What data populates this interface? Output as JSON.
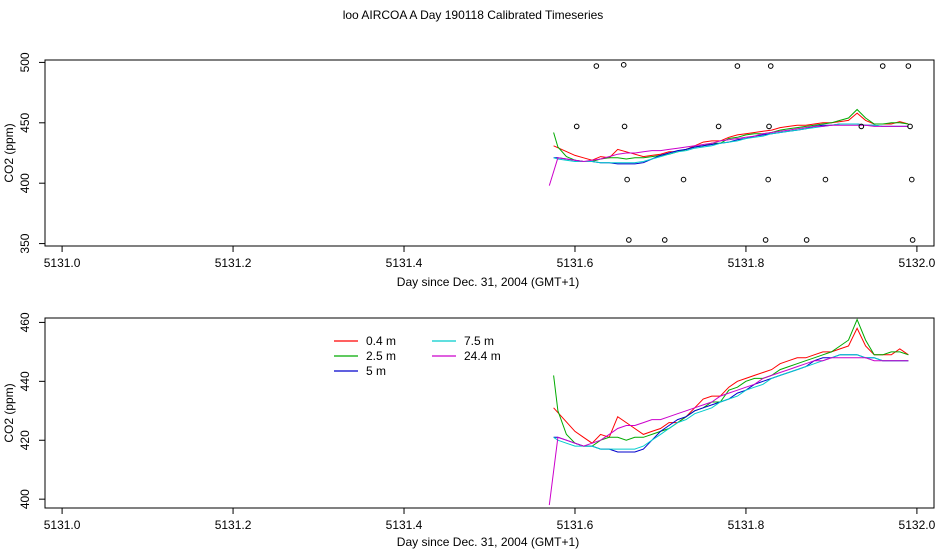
{
  "title": "loo AIRCOA A  Day 190118  Calibrated Timeseries",
  "colors": {
    "0.4 m": "#ff0000",
    "2.5 m": "#00aa00",
    "5 m": "#0000cc",
    "7.5 m": "#00cccc",
    "24.4 m": "#cc00cc"
  },
  "chart_data": [
    {
      "type": "line",
      "title": "loo AIRCOA A  Day 190118  Calibrated Timeseries",
      "xlabel": "Day since Dec. 31, 2004 (GMT+1)",
      "ylabel": "CO2 (ppm)",
      "xlim": [
        5130.98,
        5132.02
      ],
      "ylim": [
        348,
        502
      ],
      "xticks": [
        "5131.0",
        "5131.2",
        "5131.4",
        "5131.6",
        "5131.8",
        "5132.0"
      ],
      "yticks": [
        "350",
        "400",
        "450",
        "500"
      ],
      "legend": "none",
      "series": [
        {
          "name": "0.4 m",
          "color": "#ff0000",
          "x": [
            5131.575,
            5131.6,
            5131.61,
            5131.62,
            5131.63,
            5131.64,
            5131.65,
            5131.66,
            5131.67,
            5131.68,
            5131.69,
            5131.7,
            5131.71,
            5131.72,
            5131.73,
            5131.74,
            5131.75,
            5131.76,
            5131.77,
            5131.78,
            5131.79,
            5131.8,
            5131.81,
            5131.82,
            5131.83,
            5131.84,
            5131.85,
            5131.86,
            5131.87,
            5131.88,
            5131.89,
            5131.9,
            5131.91,
            5131.92,
            5131.93,
            5131.94,
            5131.95,
            5131.96,
            5131.97,
            5131.98,
            5131.99
          ],
          "y": [
            431,
            423,
            421,
            419,
            422,
            421,
            428,
            426,
            424,
            422,
            423,
            424,
            426,
            426,
            428,
            431,
            434,
            435,
            435,
            438,
            440,
            441,
            442,
            443,
            444,
            446,
            447,
            448,
            448,
            449,
            450,
            450,
            451,
            452,
            458,
            452,
            449,
            449,
            449,
            451,
            449
          ]
        },
        {
          "name": "2.5 m",
          "color": "#00aa00",
          "x": [
            5131.575,
            5131.58,
            5131.59,
            5131.6,
            5131.61,
            5131.62,
            5131.63,
            5131.64,
            5131.65,
            5131.66,
            5131.67,
            5131.68,
            5131.69,
            5131.7,
            5131.71,
            5131.72,
            5131.73,
            5131.74,
            5131.75,
            5131.76,
            5131.77,
            5131.78,
            5131.79,
            5131.8,
            5131.81,
            5131.82,
            5131.83,
            5131.84,
            5131.85,
            5131.86,
            5131.87,
            5131.88,
            5131.89,
            5131.9,
            5131.91,
            5131.92,
            5131.93,
            5131.94,
            5131.95,
            5131.96,
            5131.97,
            5131.98,
            5131.99
          ],
          "y": [
            442,
            430,
            422,
            419,
            418,
            418,
            420,
            421,
            421,
            420,
            421,
            421,
            422,
            423,
            424,
            426,
            428,
            430,
            431,
            433,
            433,
            437,
            438,
            440,
            441,
            441,
            442,
            444,
            445,
            446,
            447,
            448,
            449,
            450,
            452,
            454,
            461,
            454,
            449,
            449,
            450,
            450,
            449
          ]
        },
        {
          "name": "5 m",
          "color": "#0000cc",
          "x": [
            5131.575,
            5131.58,
            5131.59,
            5131.6,
            5131.61,
            5131.62,
            5131.63,
            5131.64,
            5131.65,
            5131.66,
            5131.67,
            5131.68,
            5131.69,
            5131.7,
            5131.71,
            5131.72,
            5131.73,
            5131.74,
            5131.75,
            5131.76,
            5131.77,
            5131.78,
            5131.79,
            5131.8,
            5131.81,
            5131.82,
            5131.83,
            5131.84,
            5131.85,
            5131.86,
            5131.87,
            5131.88,
            5131.89,
            5131.9,
            5131.91,
            5131.92,
            5131.93,
            5131.94,
            5131.95,
            5131.96,
            5131.97,
            5131.98,
            5131.99
          ],
          "y": [
            421,
            421,
            420,
            419,
            418,
            418,
            417,
            417,
            416,
            416,
            416,
            417,
            420,
            423,
            425,
            427,
            428,
            430,
            431,
            432,
            433,
            434,
            436,
            437,
            439,
            440,
            441,
            442,
            443,
            444,
            445,
            447,
            448,
            448,
            449,
            449,
            449,
            448,
            448,
            447,
            447,
            447,
            447
          ]
        },
        {
          "name": "7.5 m",
          "color": "#00cccc",
          "x": [
            5131.575,
            5131.58,
            5131.59,
            5131.6,
            5131.61,
            5131.62,
            5131.63,
            5131.64,
            5131.65,
            5131.66,
            5131.67,
            5131.68,
            5131.69,
            5131.7,
            5131.71,
            5131.72,
            5131.73,
            5131.74,
            5131.75,
            5131.76,
            5131.77,
            5131.78,
            5131.79,
            5131.8,
            5131.81,
            5131.82,
            5131.83,
            5131.84,
            5131.85,
            5131.86,
            5131.87,
            5131.88,
            5131.89,
            5131.9,
            5131.91,
            5131.92,
            5131.93,
            5131.94,
            5131.95,
            5131.96,
            5131.97,
            5131.98,
            5131.99
          ],
          "y": [
            421,
            420,
            419,
            418,
            418,
            418,
            417,
            417,
            417,
            417,
            417,
            418,
            420,
            422,
            424,
            426,
            427,
            429,
            430,
            431,
            433,
            434,
            435,
            437,
            438,
            439,
            441,
            442,
            443,
            444,
            445,
            446,
            447,
            448,
            449,
            449,
            449,
            448,
            448,
            447,
            447,
            447,
            447
          ]
        },
        {
          "name": "24.4 m",
          "color": "#cc00cc",
          "x": [
            5131.57,
            5131.58,
            5131.59,
            5131.6,
            5131.61,
            5131.62,
            5131.63,
            5131.64,
            5131.65,
            5131.66,
            5131.67,
            5131.68,
            5131.69,
            5131.7,
            5131.71,
            5131.72,
            5131.73,
            5131.74,
            5131.75,
            5131.76,
            5131.77,
            5131.78,
            5131.79,
            5131.8,
            5131.81,
            5131.82,
            5131.83,
            5131.84,
            5131.85,
            5131.86,
            5131.87,
            5131.88,
            5131.89,
            5131.9,
            5131.91,
            5131.92,
            5131.93,
            5131.94,
            5131.95,
            5131.96,
            5131.97,
            5131.98,
            5131.99
          ],
          "y": [
            398,
            421,
            420,
            419,
            418,
            419,
            420,
            422,
            424,
            425,
            425,
            426,
            427,
            427,
            428,
            429,
            430,
            431,
            432,
            433,
            435,
            436,
            437,
            438,
            439,
            441,
            442,
            443,
            444,
            445,
            446,
            447,
            447,
            448,
            448,
            448,
            448,
            448,
            447,
            447,
            447,
            447,
            447
          ]
        }
      ],
      "points": {
        "x": [
          5131.602,
          5131.625,
          5131.657,
          5131.658,
          5131.661,
          5131.663,
          5131.705,
          5131.727,
          5131.768,
          5131.79,
          5131.823,
          5131.826,
          5131.827,
          5131.829,
          5131.871,
          5131.893,
          5131.935,
          5131.96,
          5131.99,
          5131.992,
          5131.994,
          5131.995
        ],
        "y": [
          447,
          497,
          498,
          447,
          403,
          353,
          353,
          403,
          447,
          497,
          353,
          403,
          447,
          497,
          353,
          403,
          447,
          497,
          497,
          447,
          403,
          353
        ]
      }
    },
    {
      "type": "line",
      "xlabel": "Day since Dec. 31, 2004 (GMT+1)",
      "ylabel": "CO2 (ppm)",
      "xlim": [
        5130.98,
        5132.02
      ],
      "ylim": [
        397,
        461.5
      ],
      "xticks": [
        "5131.0",
        "5131.2",
        "5131.4",
        "5131.6",
        "5131.8",
        "5132.0"
      ],
      "yticks": [
        "400",
        "420",
        "440",
        "460"
      ],
      "legend": "top-left",
      "legend_entries": [
        "0.4 m",
        "2.5 m",
        "5 m",
        "7.5 m",
        "24.4 m"
      ]
    }
  ]
}
